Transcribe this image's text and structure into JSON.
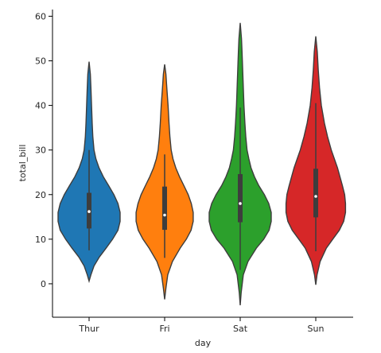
{
  "chart_data": {
    "type": "violin",
    "xlabel": "day",
    "ylabel": "total_bill",
    "ylim": [
      -7.5,
      61.5
    ],
    "yticks": [
      0,
      10,
      20,
      30,
      40,
      50,
      60
    ],
    "categories": [
      "Thur",
      "Fri",
      "Sat",
      "Sun"
    ],
    "colors": [
      "#1f77b4",
      "#ff7f0e",
      "#2ca02c",
      "#d62728"
    ],
    "violins": [
      {
        "category": "Thur",
        "min": 0.6,
        "max": 49.8,
        "q1": 12.4,
        "median": 16.2,
        "q3": 20.4,
        "whisker_low": 7.5,
        "whisker_high": 30.0,
        "profile": [
          [
            0.6,
            0.0
          ],
          [
            2,
            0.06
          ],
          [
            4,
            0.16
          ],
          [
            6,
            0.33
          ],
          [
            8,
            0.55
          ],
          [
            10,
            0.76
          ],
          [
            12,
            0.93
          ],
          [
            14,
            1.0
          ],
          [
            16,
            1.0
          ],
          [
            18,
            0.93
          ],
          [
            20,
            0.8
          ],
          [
            22,
            0.63
          ],
          [
            24,
            0.46
          ],
          [
            26,
            0.32
          ],
          [
            28,
            0.22
          ],
          [
            30,
            0.16
          ],
          [
            33,
            0.12
          ],
          [
            36,
            0.1
          ],
          [
            40,
            0.08
          ],
          [
            44,
            0.06
          ],
          [
            47,
            0.04
          ],
          [
            49.8,
            0.0
          ]
        ]
      },
      {
        "category": "Fri",
        "min": -3.5,
        "max": 49.2,
        "q1": 12.1,
        "median": 15.4,
        "q3": 21.8,
        "whisker_low": 5.8,
        "whisker_high": 29.0,
        "profile": [
          [
            -3.5,
            0.0
          ],
          [
            -1,
            0.04
          ],
          [
            2,
            0.1
          ],
          [
            5,
            0.25
          ],
          [
            8,
            0.5
          ],
          [
            10,
            0.7
          ],
          [
            12,
            0.85
          ],
          [
            14,
            0.92
          ],
          [
            16,
            0.92
          ],
          [
            18,
            0.86
          ],
          [
            20,
            0.76
          ],
          [
            22,
            0.62
          ],
          [
            24,
            0.48
          ],
          [
            26,
            0.36
          ],
          [
            28,
            0.27
          ],
          [
            30,
            0.21
          ],
          [
            33,
            0.17
          ],
          [
            36,
            0.14
          ],
          [
            40,
            0.11
          ],
          [
            44,
            0.07
          ],
          [
            47,
            0.04
          ],
          [
            49.2,
            0.0
          ]
        ]
      },
      {
        "category": "Sat",
        "min": -4.8,
        "max": 58.5,
        "q1": 13.8,
        "median": 18.0,
        "q3": 24.6,
        "whisker_low": 3.1,
        "whisker_high": 39.5,
        "profile": [
          [
            -4.8,
            0.0
          ],
          [
            -2,
            0.03
          ],
          [
            2,
            0.1
          ],
          [
            5,
            0.25
          ],
          [
            8,
            0.52
          ],
          [
            10,
            0.76
          ],
          [
            12,
            0.93
          ],
          [
            14,
            1.0
          ],
          [
            16,
            1.0
          ],
          [
            18,
            0.92
          ],
          [
            20,
            0.78
          ],
          [
            22,
            0.6
          ],
          [
            24,
            0.46
          ],
          [
            26,
            0.35
          ],
          [
            28,
            0.28
          ],
          [
            30,
            0.22
          ],
          [
            33,
            0.18
          ],
          [
            36,
            0.15
          ],
          [
            40,
            0.12
          ],
          [
            44,
            0.1
          ],
          [
            48,
            0.08
          ],
          [
            52,
            0.06
          ],
          [
            55,
            0.04
          ],
          [
            58.5,
            0.0
          ]
        ]
      },
      {
        "category": "Sun",
        "min": -0.2,
        "max": 55.5,
        "q1": 14.9,
        "median": 19.6,
        "q3": 25.8,
        "whisker_low": 7.3,
        "whisker_high": 40.5,
        "profile": [
          [
            -0.2,
            0.0
          ],
          [
            2,
            0.04
          ],
          [
            5,
            0.14
          ],
          [
            8,
            0.34
          ],
          [
            10,
            0.55
          ],
          [
            12,
            0.76
          ],
          [
            14,
            0.9
          ],
          [
            16,
            0.96
          ],
          [
            18,
            0.96
          ],
          [
            20,
            0.93
          ],
          [
            22,
            0.86
          ],
          [
            24,
            0.78
          ],
          [
            26,
            0.7
          ],
          [
            28,
            0.6
          ],
          [
            30,
            0.5
          ],
          [
            33,
            0.38
          ],
          [
            36,
            0.28
          ],
          [
            40,
            0.18
          ],
          [
            44,
            0.12
          ],
          [
            48,
            0.08
          ],
          [
            52,
            0.05
          ],
          [
            55.5,
            0.0
          ]
        ]
      }
    ]
  }
}
